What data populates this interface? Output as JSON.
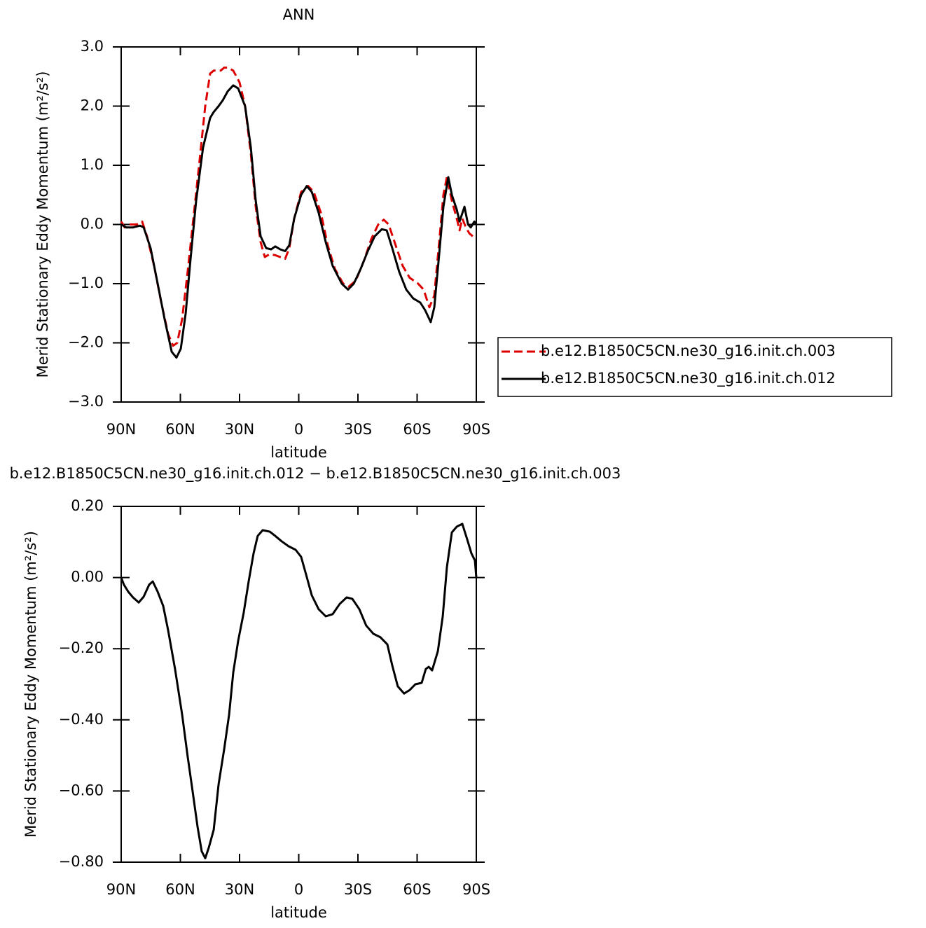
{
  "chart_data": [
    {
      "type": "line",
      "title": "ANN",
      "x_label": "latitude",
      "y_label": "Merid Stationary Eddy Momentum (m²/s²)",
      "xlim": [
        90,
        -90
      ],
      "xticks": [
        {
          "value": 90,
          "label": "90N"
        },
        {
          "value": 60,
          "label": "60N"
        },
        {
          "value": 30,
          "label": "30N"
        },
        0,
        {
          "value": -30,
          "label": "30S"
        },
        {
          "value": -60,
          "label": "60S"
        },
        {
          "value": -90,
          "label": "90S"
        }
      ],
      "ylim": [
        -3,
        3
      ],
      "yticks": [
        {
          "value": 3,
          "label": "3.0"
        },
        {
          "value": 2,
          "label": "2.0"
        },
        {
          "value": 1,
          "label": "1.0"
        },
        {
          "value": 0,
          "label": "0.0"
        },
        {
          "value": -1,
          "label": "−1.0"
        },
        {
          "value": -2,
          "label": "−2.0"
        },
        {
          "value": -3,
          "label": "−3.0"
        }
      ],
      "legend": "right",
      "series": [
        {
          "name": "b.e12.B1850C5CN.ne30_g16.init.ch.003",
          "color": "#dd0000",
          "dashed": true,
          "x": [
            90,
            88.2,
            85.7,
            82.2,
            79.4,
            76.9,
            73.3,
            69.8,
            66.2,
            63.7,
            61.6,
            59.1,
            56.3,
            53.4,
            50.2,
            47.4,
            44.9,
            43.1,
            39.6,
            37.8,
            36,
            33.2,
            30,
            27.2,
            24.3,
            21.8,
            19.3,
            17.2,
            14.7,
            11.9,
            9.4,
            6.9,
            4.8,
            2.3,
            -1.2,
            -4.8,
            -7.6,
            -11.2,
            -14.7,
            -18.3,
            -22.5,
            -25.4,
            -28.9,
            -33.2,
            -36.7,
            -40.3,
            -43.1,
            -45.6,
            -49.1,
            -52.7,
            -56.2,
            -60.5,
            -63.3,
            -66.2,
            -68.7,
            -71.2,
            -73.3,
            -75.1,
            -77.6,
            -80.1,
            -81.5,
            -82.9,
            -84.7,
            -86.5,
            -88.2
          ],
          "values": [
            0.05,
            -0.05,
            0.0,
            0.0,
            0.05,
            -0.2,
            -0.7,
            -1.3,
            -1.85,
            -2.05,
            -2.0,
            -1.6,
            -0.8,
            0.1,
            1.1,
            2.0,
            2.55,
            2.6,
            2.6,
            2.65,
            2.65,
            2.6,
            2.4,
            2.0,
            1.2,
            0.3,
            -0.3,
            -0.55,
            -0.5,
            -0.52,
            -0.55,
            -0.58,
            -0.4,
            0.1,
            0.55,
            0.65,
            0.55,
            0.2,
            -0.35,
            -0.75,
            -1.0,
            -1.05,
            -0.95,
            -0.6,
            -0.25,
            0.0,
            0.08,
            0.0,
            -0.35,
            -0.7,
            -0.9,
            -1.0,
            -1.1,
            -1.4,
            -1.2,
            -0.3,
            0.5,
            0.8,
            0.4,
            0.1,
            -0.1,
            0.1,
            -0.05,
            -0.15,
            -0.2
          ]
        },
        {
          "name": "b.e12.B1850C5CN.ne30_g16.init.ch.012",
          "color": "#000000",
          "dashed": false,
          "x": [
            90,
            87.5,
            84,
            80.4,
            78.6,
            75.1,
            71.5,
            68,
            64.4,
            62,
            59.8,
            57.3,
            54.9,
            52,
            48.5,
            44.9,
            43.1,
            40.6,
            38.5,
            36,
            33.2,
            30.7,
            27.2,
            24.3,
            21.8,
            19.3,
            16.5,
            14,
            11.9,
            9.4,
            6.9,
            4.8,
            2.3,
            -1.2,
            -4.1,
            -6.6,
            -10.1,
            -13.7,
            -17.2,
            -21.8,
            -25,
            -27.9,
            -31.4,
            -35,
            -38.5,
            -42.1,
            -44.6,
            -47.4,
            -50.9,
            -54.5,
            -58,
            -61.6,
            -64.1,
            -66.9,
            -68.7,
            -71.2,
            -73.3,
            -75.8,
            -77.6,
            -80.1,
            -81.5,
            -84,
            -85.8,
            -87.2,
            -89,
            -90
          ],
          "values": [
            0.0,
            -0.05,
            -0.05,
            -0.02,
            -0.05,
            -0.4,
            -1.0,
            -1.6,
            -2.15,
            -2.25,
            -2.1,
            -1.5,
            -0.6,
            0.4,
            1.3,
            1.8,
            1.9,
            2.0,
            2.1,
            2.25,
            2.35,
            2.3,
            2.0,
            1.3,
            0.4,
            -0.2,
            -0.4,
            -0.42,
            -0.37,
            -0.42,
            -0.45,
            -0.35,
            0.1,
            0.5,
            0.65,
            0.55,
            0.2,
            -0.3,
            -0.7,
            -1.0,
            -1.1,
            -1.0,
            -0.75,
            -0.45,
            -0.2,
            -0.08,
            -0.1,
            -0.4,
            -0.8,
            -1.1,
            -1.25,
            -1.32,
            -1.45,
            -1.65,
            -1.4,
            -0.5,
            0.3,
            0.8,
            0.5,
            0.25,
            0.05,
            0.3,
            0.0,
            -0.05,
            0.05,
            0.0
          ]
        }
      ]
    },
    {
      "type": "line",
      "title": "b.e12.B1850C5CN.ne30_g16.init.ch.012 − b.e12.B1850C5CN.ne30_g16.init.ch.003",
      "x_label": "latitude",
      "y_label": "Merid Stationary Eddy Momentum (m²/s²)",
      "xlim": [
        90,
        -90
      ],
      "xticks": [
        {
          "value": 90,
          "label": "90N"
        },
        {
          "value": 60,
          "label": "60N"
        },
        {
          "value": 30,
          "label": "30N"
        },
        0,
        {
          "value": -30,
          "label": "30S"
        },
        {
          "value": -60,
          "label": "60S"
        },
        {
          "value": -90,
          "label": "90S"
        }
      ],
      "ylim": [
        -0.8,
        0.2
      ],
      "yticks": [
        {
          "value": 0.2,
          "label": "0.20"
        },
        {
          "value": 0,
          "label": "0.00"
        },
        {
          "value": -0.2,
          "label": "−0.20"
        },
        {
          "value": -0.4,
          "label": "−0.40"
        },
        {
          "value": -0.6,
          "label": "−0.60"
        },
        {
          "value": -0.8,
          "label": "−0.80"
        }
      ],
      "series": [
        {
          "color": "#000000",
          "dashed": false,
          "x": [
            90,
            88.6,
            86.4,
            84,
            81.1,
            78.6,
            75.8,
            74,
            71.5,
            68.7,
            66.2,
            62.7,
            59.1,
            56.3,
            53.8,
            51.3,
            49.2,
            47.4,
            45.6,
            43.1,
            40.6,
            37.8,
            35.3,
            33.2,
            30.7,
            27.9,
            25.4,
            22.9,
            20.8,
            18.3,
            14.7,
            11.9,
            8.7,
            5.2,
            1.6,
            -1.2,
            -3.7,
            -6.6,
            -10.1,
            -13.7,
            -17.2,
            -20.8,
            -24.3,
            -27.2,
            -30.7,
            -34.2,
            -37.8,
            -41.4,
            -44.9,
            -47.4,
            -50.2,
            -53.4,
            -56.3,
            -59.1,
            -62.3,
            -64.4,
            -65.9,
            -67.6,
            -70.5,
            -73,
            -75.1,
            -77.6,
            -80.1,
            -82.9,
            -85.4,
            -87.5,
            -89.3,
            -90
          ],
          "values": [
            0.0,
            -0.02,
            -0.04,
            -0.056,
            -0.07,
            -0.054,
            -0.02,
            -0.011,
            -0.04,
            -0.08,
            -0.148,
            -0.257,
            -0.385,
            -0.503,
            -0.601,
            -0.7,
            -0.769,
            -0.789,
            -0.759,
            -0.709,
            -0.581,
            -0.483,
            -0.385,
            -0.267,
            -0.178,
            -0.099,
            -0.011,
            0.068,
            0.117,
            0.133,
            0.129,
            0.117,
            0.102,
            0.088,
            0.078,
            0.058,
            0.009,
            -0.05,
            -0.089,
            -0.109,
            -0.103,
            -0.074,
            -0.056,
            -0.06,
            -0.089,
            -0.135,
            -0.158,
            -0.168,
            -0.188,
            -0.247,
            -0.306,
            -0.326,
            -0.316,
            -0.3,
            -0.296,
            -0.257,
            -0.251,
            -0.261,
            -0.207,
            -0.109,
            0.029,
            0.127,
            0.143,
            0.151,
            0.107,
            0.068,
            0.048,
            0.0
          ]
        }
      ]
    }
  ]
}
